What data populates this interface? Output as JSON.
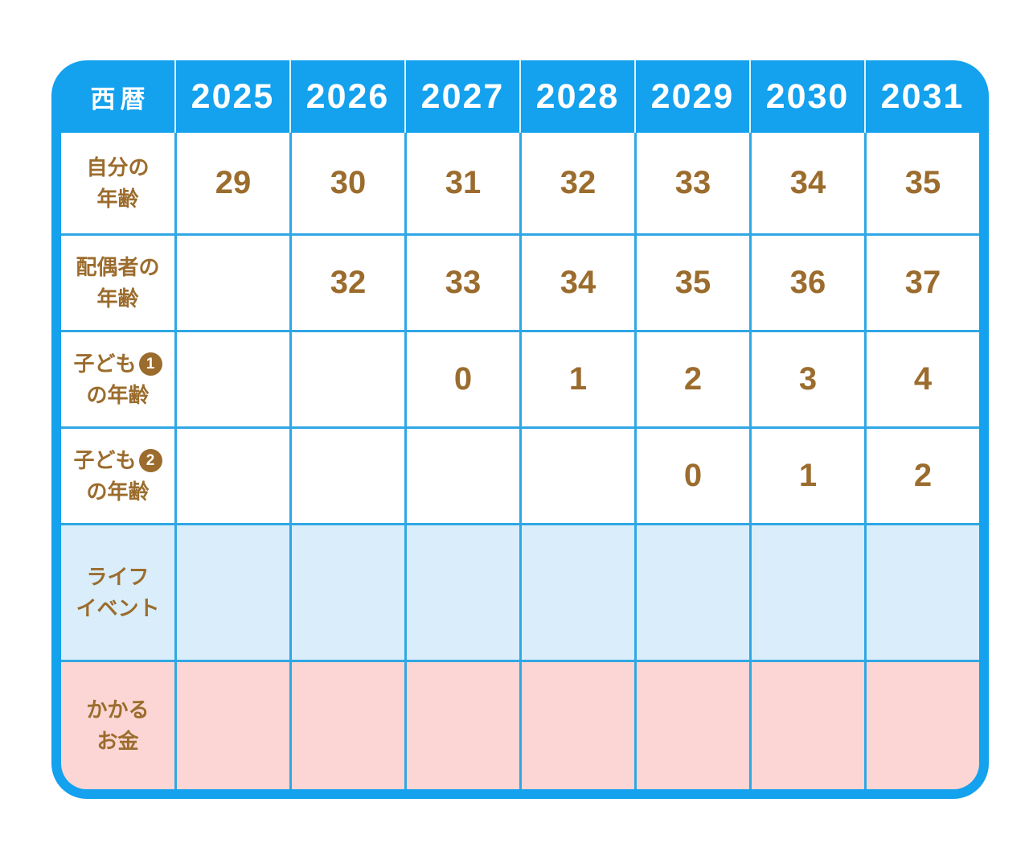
{
  "table": {
    "corner_label": "西暦",
    "years": [
      "2025",
      "2026",
      "2027",
      "2028",
      "2029",
      "2030",
      "2031"
    ],
    "rows": [
      {
        "key": "self-age",
        "label_lines": [
          "自分の",
          "年齢"
        ],
        "values": [
          "29",
          "30",
          "31",
          "32",
          "33",
          "34",
          "35"
        ],
        "style": "white"
      },
      {
        "key": "spouse-age",
        "label_lines": [
          "配偶者の",
          "年齢"
        ],
        "values": [
          "",
          "32",
          "33",
          "34",
          "35",
          "36",
          "37"
        ],
        "style": "white"
      },
      {
        "key": "child1-age",
        "label_lines": [
          "子ども",
          "の年齢"
        ],
        "badge": "1",
        "values": [
          "",
          "",
          "0",
          "1",
          "2",
          "3",
          "4"
        ],
        "style": "white"
      },
      {
        "key": "child2-age",
        "label_lines": [
          "子ども",
          "の年齢"
        ],
        "badge": "2",
        "values": [
          "",
          "",
          "",
          "",
          "0",
          "1",
          "2"
        ],
        "style": "white"
      },
      {
        "key": "life-event",
        "label_lines": [
          "ライフ",
          "イベント"
        ],
        "values": [
          "",
          "",
          "",
          "",
          "",
          "",
          ""
        ],
        "style": "lightblue"
      },
      {
        "key": "money",
        "label_lines": [
          "かかる",
          "お金"
        ],
        "values": [
          "",
          "",
          "",
          "",
          "",
          "",
          ""
        ],
        "style": "pink"
      }
    ],
    "colors": {
      "header_and_border_blue": "#14A1EE",
      "grid_line_blue": "#2FA7E5",
      "header_separator": "#DDF2FC",
      "life_event_row_bg": "#D9EEFA",
      "money_row_bg": "#FCD6D4",
      "text_brown": "#9B6C2D",
      "header_text": "#FFFFFF"
    }
  }
}
